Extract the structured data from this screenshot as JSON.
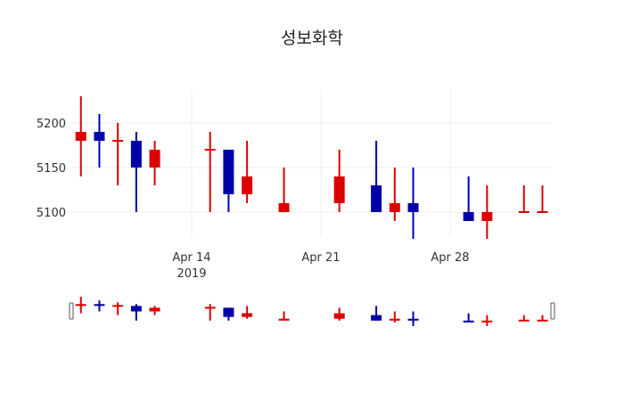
{
  "chart_data": {
    "type": "candlestick",
    "title": "성보화학",
    "xlabel": "",
    "ylabel": "",
    "ylim": [
      5060,
      5235
    ],
    "yticks": [
      5100,
      5150,
      5200
    ],
    "xticks": [
      {
        "date": "2019-04-14",
        "label": "Apr 14",
        "sublabel": "2019"
      },
      {
        "date": "2019-04-21",
        "label": "Apr 21",
        "sublabel": ""
      },
      {
        "date": "2019-04-28",
        "label": "Apr 28",
        "sublabel": ""
      }
    ],
    "grid": true,
    "rangeslider": true,
    "colors": {
      "increasing": "#dd0000",
      "decreasing": "#0000aa",
      "grid": "#eeeeee"
    },
    "series": [
      {
        "date": "2019-04-08",
        "open": 5180,
        "high": 5230,
        "low": 5140,
        "close": 5190
      },
      {
        "date": "2019-04-09",
        "open": 5190,
        "high": 5210,
        "low": 5150,
        "close": 5180
      },
      {
        "date": "2019-04-10",
        "open": 5180,
        "high": 5200,
        "low": 5130,
        "close": 5180
      },
      {
        "date": "2019-04-11",
        "open": 5180,
        "high": 5190,
        "low": 5100,
        "close": 5150
      },
      {
        "date": "2019-04-12",
        "open": 5150,
        "high": 5180,
        "low": 5130,
        "close": 5170
      },
      {
        "date": "2019-04-15",
        "open": 5170,
        "high": 5190,
        "low": 5100,
        "close": 5170
      },
      {
        "date": "2019-04-16",
        "open": 5170,
        "high": 5170,
        "low": 5100,
        "close": 5120
      },
      {
        "date": "2019-04-17",
        "open": 5120,
        "high": 5180,
        "low": 5110,
        "close": 5140
      },
      {
        "date": "2019-04-19",
        "open": 5100,
        "high": 5150,
        "low": 5100,
        "close": 5110
      },
      {
        "date": "2019-04-22",
        "open": 5110,
        "high": 5170,
        "low": 5100,
        "close": 5140
      },
      {
        "date": "2019-04-24",
        "open": 5130,
        "high": 5180,
        "low": 5100,
        "close": 5100
      },
      {
        "date": "2019-04-25",
        "open": 5100,
        "high": 5150,
        "low": 5090,
        "close": 5110
      },
      {
        "date": "2019-04-26",
        "open": 5110,
        "high": 5150,
        "low": 5070,
        "close": 5100
      },
      {
        "date": "2019-04-29",
        "open": 5100,
        "high": 5140,
        "low": 5090,
        "close": 5090
      },
      {
        "date": "2019-04-30",
        "open": 5090,
        "high": 5130,
        "low": 5070,
        "close": 5100
      },
      {
        "date": "2019-05-02",
        "open": 5100,
        "high": 5130,
        "low": 5100,
        "close": 5100
      },
      {
        "date": "2019-05-03",
        "open": 5100,
        "high": 5130,
        "low": 5100,
        "close": 5100
      }
    ]
  }
}
